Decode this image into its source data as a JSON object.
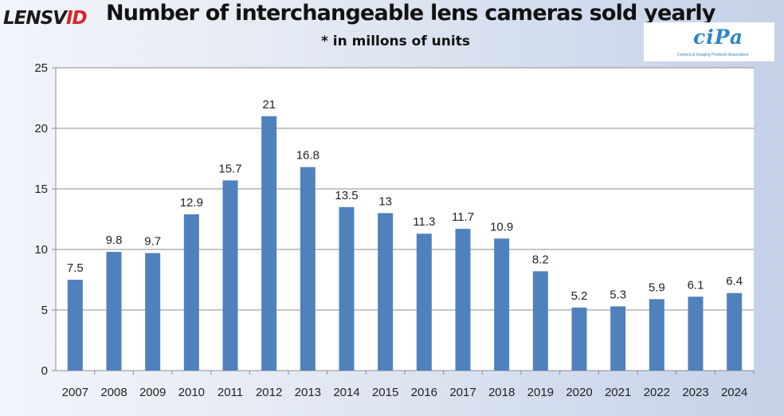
{
  "logo": {
    "text_main": "LENSV",
    "text_accent": "ID"
  },
  "cipa_logo": {
    "mark": "CIPA",
    "caption": "Camera & Imaging Products Association"
  },
  "colors": {
    "bar": "#4f81bd",
    "grid": "#8c8c8c",
    "plot_bg": "#ffffff"
  },
  "chart_data": {
    "type": "bar",
    "title": "Number of interchangeable lens cameras sold yearly",
    "subtitle": "* in millons of units",
    "xlabel": "",
    "ylabel": "",
    "categories": [
      "2007",
      "2008",
      "2009",
      "2010",
      "2011",
      "2012",
      "2013",
      "2014",
      "2015",
      "2016",
      "2017",
      "2018",
      "2019",
      "2020",
      "2021",
      "2022",
      "2023",
      "2024"
    ],
    "values": [
      7.5,
      9.8,
      9.7,
      12.9,
      15.7,
      21,
      16.8,
      13.5,
      13,
      11.3,
      11.7,
      10.9,
      8.2,
      5.2,
      5.3,
      5.9,
      6.1,
      6.4
    ],
    "data_labels": [
      "7.5",
      "9.8",
      "9.7",
      "12.9",
      "15.7",
      "21",
      "16.8",
      "13.5",
      "13",
      "11.3",
      "11.7",
      "10.9",
      "8.2",
      "5.2",
      "5.3",
      "5.9",
      "6.1",
      "6.4"
    ],
    "ylim": [
      0,
      25
    ],
    "yticks": [
      0,
      5,
      10,
      15,
      20,
      25
    ],
    "grid": true,
    "legend": "none"
  }
}
